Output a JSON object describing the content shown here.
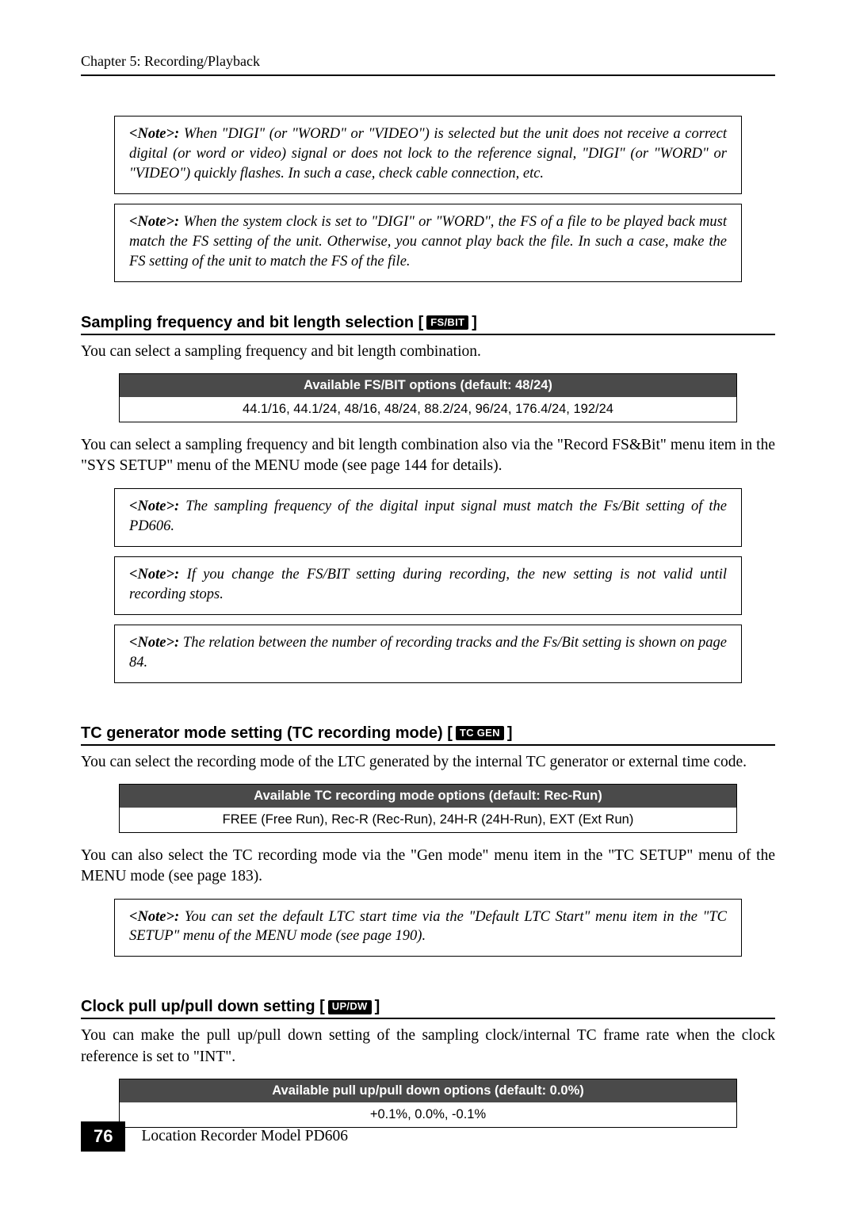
{
  "header": {
    "chapter": "Chapter 5: Recording/Playback"
  },
  "notes": {
    "n1": "When \"DIGI\" (or \"WORD\" or \"VIDEO\") is selected but the unit does not receive a correct digital (or word or video) signal or does not lock to the reference signal, \"DIGI\" (or \"WORD\" or \"VIDEO\") quickly flashes. In such a case, check cable connection, etc.",
    "n2": "When the system clock is set to \"DIGI\" or \"WORD\", the FS of a file to be played back must match the FS setting of the unit. Otherwise, you cannot play back the file. In such a case, make the FS setting of the unit to match the FS of the file.",
    "n3": "The sampling frequency of the digital input signal must match the Fs/Bit setting of the PD606.",
    "n4": "If you change the FS/BIT setting during recording, the new setting is not valid until recording stops.",
    "n5": "The relation between the number of recording tracks and the Fs/Bit setting is shown on page 84.",
    "n6": "You can set the default LTC start time via the \"Default LTC Start\" menu item in the \"TC SETUP\" menu of the MENU mode (see page 190).",
    "label": "<Note>:"
  },
  "sections": {
    "fsbit": {
      "title_pre": "Sampling frequency and bit length selection [ ",
      "title_post": " ]",
      "badge": "FS/BIT",
      "intro": "You can select a sampling frequency and bit length combination.",
      "table_header": "Available FS/BIT options (default: 48/24)",
      "table_row": "44.1/16, 44.1/24, 48/16, 48/24, 88.2/24, 96/24, 176.4/24, 192/24",
      "after": "You can select a sampling frequency and bit length combination also via the \"Record FS&Bit\" menu item in the \"SYS SETUP\" menu of the MENU mode (see page 144 for details)."
    },
    "tcgen": {
      "title_pre": "TC generator mode setting (TC recording mode) [ ",
      "title_post": " ]",
      "badge": "TC GEN",
      "intro": "You can select the recording mode of the LTC generated by the internal TC generator or external time code.",
      "table_header": "Available TC recording mode options (default: Rec-Run)",
      "table_row": "FREE (Free Run), Rec-R (Rec-Run), 24H-R (24H-Run), EXT (Ext Run)",
      "after": "You can also select the TC recording mode via the \"Gen mode\" menu item in the \"TC SETUP\" menu of the MENU mode (see page 183)."
    },
    "pull": {
      "title_pre": "Clock pull up/pull down setting [ ",
      "title_post": " ]",
      "badge": "UP/DW",
      "intro": "You can make the pull up/pull down setting of the sampling clock/internal TC frame rate when the clock reference is set to \"INT\".",
      "table_header": "Available pull up/pull down options (default: 0.0%)",
      "table_row": "+0.1%, 0.0%, -0.1%"
    }
  },
  "footer": {
    "page": "76",
    "product": "Location Recorder  Model PD606"
  },
  "colors": {
    "table_header_bg": "#4a4a4a",
    "text": "#000000",
    "bg": "#ffffff"
  }
}
